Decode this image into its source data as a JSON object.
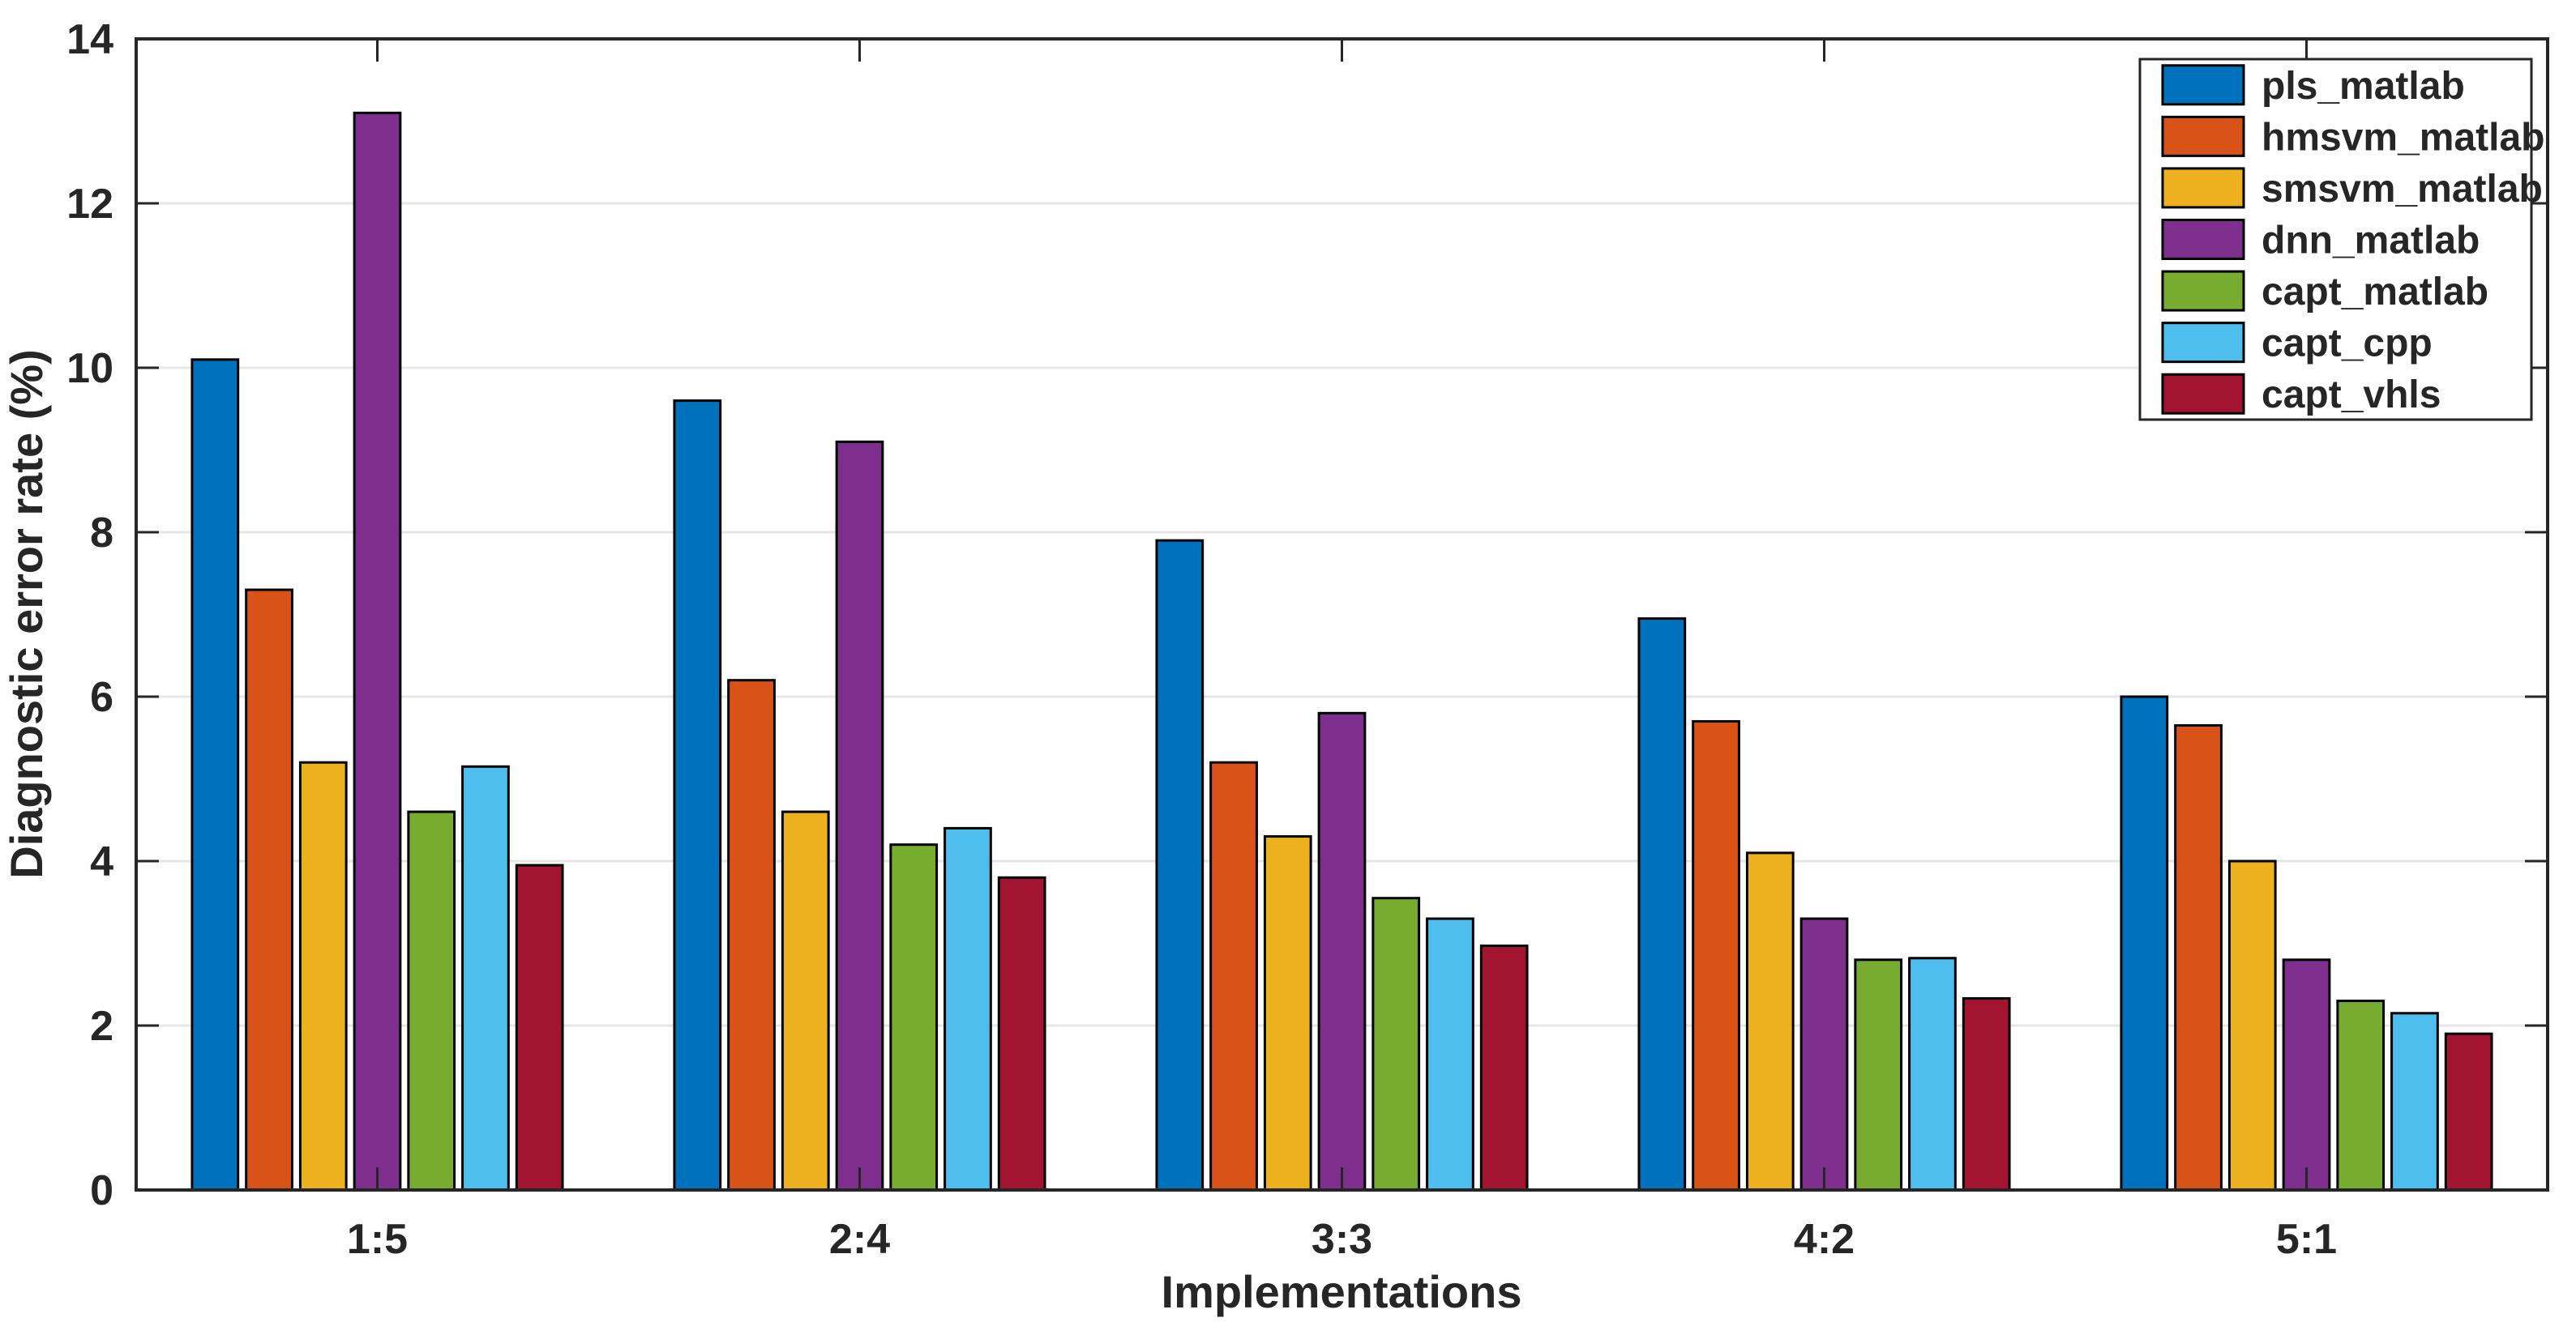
{
  "chart_data": {
    "type": "bar",
    "title": "",
    "xlabel": "Implementations",
    "ylabel": "Diagnostic error rate (%)",
    "categories": [
      "1:5",
      "2:4",
      "3:3",
      "4:2",
      "5:1"
    ],
    "series": [
      {
        "name": "pls_matlab",
        "color": "#0072BD",
        "values": [
          10.1,
          9.6,
          7.9,
          6.95,
          6.0
        ]
      },
      {
        "name": "hmsvm_matlab",
        "color": "#D95319",
        "values": [
          7.3,
          6.2,
          5.2,
          5.7,
          5.65
        ]
      },
      {
        "name": "smsvm_matlab",
        "color": "#EDB120",
        "values": [
          5.2,
          4.6,
          4.3,
          4.1,
          4.0
        ]
      },
      {
        "name": "dnn_matlab",
        "color": "#7E2F8E",
        "values": [
          13.1,
          9.1,
          5.8,
          3.3,
          2.8
        ]
      },
      {
        "name": "capt_matlab",
        "color": "#77AC30",
        "values": [
          4.6,
          4.2,
          3.55,
          2.8,
          2.3
        ]
      },
      {
        "name": "capt_cpp",
        "color": "#4DBEEE",
        "values": [
          5.15,
          4.4,
          3.3,
          2.82,
          2.15
        ]
      },
      {
        "name": "capt_vhls",
        "color": "#A2142F",
        "values": [
          3.95,
          3.8,
          2.97,
          2.33,
          1.9
        ]
      }
    ],
    "ylim": [
      0,
      14
    ],
    "yticks": [
      0,
      2,
      4,
      6,
      8,
      10,
      12,
      14
    ],
    "grid": true,
    "legend_position": "top-right-inside",
    "colors": {
      "axis": "#262626",
      "grid": "#E6E6E6",
      "bar_edge": "#000000",
      "background": "#FFFFFF",
      "legend_border": "#262626",
      "legend_fill": "#FFFFFF"
    }
  }
}
